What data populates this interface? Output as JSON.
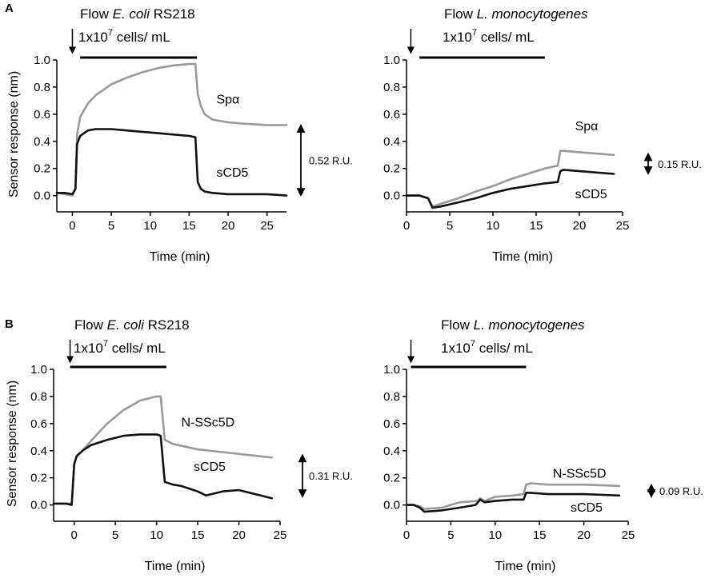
{
  "panel_labels": [
    "A",
    "B"
  ],
  "units_label": "cells/ mL",
  "flow_word": "Flow",
  "colors": {
    "gray": "#999999",
    "black": "#111111"
  },
  "chart_data": [
    {
      "type": "line",
      "panel": "A",
      "title_prefix": "Flow",
      "title_organism": "E. coli",
      "title_suffix": "RS218",
      "concentration_base": "1x10",
      "concentration_exp": "7",
      "concentration_unit": "cells/ mL",
      "xlabel": "Time (min)",
      "ylabel": "Sensor response (nm)",
      "xlim": [
        -2,
        27.5
      ],
      "ylim": [
        -0.12,
        1.0
      ],
      "xticks": [
        0,
        5,
        10,
        15,
        20,
        25
      ],
      "yticks": [
        0.0,
        0.2,
        0.4,
        0.6,
        0.8,
        1.0
      ],
      "tick_labels_x": [
        "0",
        "5",
        "10",
        "15",
        "20",
        "25"
      ],
      "tick_labels_y": [
        "0.0",
        "0.2",
        "0.4",
        "0.6",
        "0.8",
        "1.0"
      ],
      "injection_time": 0,
      "flow_bar": [
        1,
        16
      ],
      "annotation": {
        "text": "0.52 R.U.",
        "range": [
          0.0,
          0.52
        ]
      },
      "series": [
        {
          "name": "Spα",
          "color": "gray",
          "x": [
            -2,
            -1,
            0,
            0.4,
            0.6,
            1,
            2,
            3,
            5,
            7,
            9,
            11,
            13,
            15,
            15.8,
            16.1,
            16.5,
            17,
            18,
            20,
            22,
            25,
            27.5
          ],
          "y": [
            0.02,
            0.01,
            0.0,
            0.05,
            0.45,
            0.58,
            0.68,
            0.74,
            0.82,
            0.87,
            0.91,
            0.94,
            0.96,
            0.97,
            0.97,
            0.75,
            0.66,
            0.6,
            0.56,
            0.54,
            0.53,
            0.52,
            0.52
          ],
          "label_x": 18.5,
          "label_y": 0.68
        },
        {
          "name": "sCD5",
          "color": "black",
          "x": [
            -2,
            -1,
            0,
            0.4,
            0.6,
            1,
            2,
            3,
            5,
            7,
            9,
            11,
            13,
            15,
            15.8,
            16.1,
            16.5,
            17,
            18,
            20,
            22,
            25,
            27.5
          ],
          "y": [
            0.02,
            0.02,
            0.01,
            0.05,
            0.38,
            0.44,
            0.48,
            0.49,
            0.49,
            0.48,
            0.47,
            0.46,
            0.45,
            0.44,
            0.43,
            0.1,
            0.05,
            0.03,
            0.02,
            0.01,
            0.01,
            0.01,
            0.0
          ],
          "label_x": 18.5,
          "label_y": 0.14
        }
      ]
    },
    {
      "type": "line",
      "panel": "A",
      "title_prefix": "Flow",
      "title_organism": "L. monocytogenes",
      "title_suffix": "",
      "concentration_base": "1x10",
      "concentration_exp": "7",
      "concentration_unit": "cells/ mL",
      "xlabel": "Time (min)",
      "ylabel": "",
      "xlim": [
        0,
        25
      ],
      "ylim": [
        -0.12,
        1.0
      ],
      "xticks": [
        0,
        5,
        10,
        15,
        20,
        25
      ],
      "yticks": [
        0.0,
        0.2,
        0.4,
        0.6,
        0.8,
        1.0
      ],
      "tick_labels_x": [
        "0",
        "5",
        "10",
        "15",
        "20",
        "25"
      ],
      "tick_labels_y": [
        "0.0",
        "0.2",
        "0.4",
        "0.6",
        "0.8",
        "1.0"
      ],
      "injection_time": 0.5,
      "flow_bar": [
        1.5,
        16
      ],
      "annotation": {
        "text": "0.15 R.U.",
        "range": [
          0.16,
          0.31
        ]
      },
      "series": [
        {
          "name": "Spα",
          "color": "gray",
          "x": [
            0,
            1.5,
            2.5,
            3,
            4,
            6,
            8,
            10,
            12,
            14,
            16,
            17.5,
            17.8,
            18.2,
            20,
            22,
            24
          ],
          "y": [
            0.0,
            0.0,
            -0.02,
            -0.08,
            -0.06,
            -0.02,
            0.03,
            0.07,
            0.12,
            0.16,
            0.2,
            0.22,
            0.33,
            0.33,
            0.32,
            0.31,
            0.3
          ],
          "label_x": 19.5,
          "label_y": 0.48
        },
        {
          "name": "sCD5",
          "color": "black",
          "x": [
            0,
            1.5,
            2.5,
            3,
            4,
            6,
            8,
            10,
            12,
            14,
            16,
            17.5,
            17.8,
            18.2,
            20,
            22,
            24
          ],
          "y": [
            0.0,
            0.0,
            -0.02,
            -0.09,
            -0.08,
            -0.05,
            -0.02,
            0.02,
            0.05,
            0.07,
            0.09,
            0.1,
            0.18,
            0.19,
            0.18,
            0.17,
            0.16
          ],
          "label_x": 19.5,
          "label_y": -0.02
        }
      ]
    },
    {
      "type": "line",
      "panel": "B",
      "title_prefix": "Flow",
      "title_organism": "E. coli",
      "title_suffix": "RS218",
      "concentration_base": "1x10",
      "concentration_exp": "7",
      "concentration_unit": "cells/ mL",
      "xlabel": "Time (min)",
      "ylabel": "Sensor response (nm)",
      "xlim": [
        -2.5,
        25
      ],
      "ylim": [
        -0.12,
        1.0
      ],
      "xticks": [
        0,
        5,
        10,
        15,
        20,
        25
      ],
      "yticks": [
        0.0,
        0.2,
        0.4,
        0.6,
        0.8,
        1.0
      ],
      "tick_labels_x": [
        "0",
        "5",
        "10",
        "15",
        "20",
        "25"
      ],
      "tick_labels_y": [
        "0.0",
        "0.2",
        "0.4",
        "0.6",
        "0.8",
        "1.0"
      ],
      "injection_time": -0.5,
      "flow_bar": [
        -0.5,
        11.2
      ],
      "annotation": {
        "text": "0.31 R.U.",
        "range": [
          0.06,
          0.37
        ]
      },
      "series": [
        {
          "name": "N-SSc5D",
          "color": "gray",
          "x": [
            -2.5,
            -1,
            -0.3,
            0,
            0.3,
            1,
            2,
            4,
            6,
            8,
            10,
            10.5,
            11,
            12,
            15,
            18,
            21,
            24
          ],
          "y": [
            0.01,
            0.01,
            0.01,
            0.3,
            0.36,
            0.4,
            0.47,
            0.6,
            0.7,
            0.77,
            0.8,
            0.8,
            0.48,
            0.45,
            0.41,
            0.39,
            0.37,
            0.35
          ],
          "label_x": 13.0,
          "label_y": 0.58
        },
        {
          "name": "sCD5",
          "color": "black",
          "x": [
            -2.5,
            -1,
            -0.3,
            0,
            0.3,
            1,
            2,
            4,
            6,
            8,
            10,
            10.5,
            11,
            12,
            13,
            15,
            16,
            18,
            20,
            22,
            24
          ],
          "y": [
            0.01,
            0.01,
            0.0,
            0.3,
            0.36,
            0.4,
            0.44,
            0.48,
            0.51,
            0.52,
            0.52,
            0.51,
            0.17,
            0.15,
            0.14,
            0.1,
            0.07,
            0.1,
            0.11,
            0.08,
            0.05
          ],
          "label_x": 14.5,
          "label_y": 0.25
        }
      ]
    },
    {
      "type": "line",
      "panel": "B",
      "title_prefix": "Flow",
      "title_organism": "L. monocytogenes",
      "title_suffix": "",
      "concentration_base": "1x10",
      "concentration_exp": "7",
      "concentration_unit": "cells/ mL",
      "xlabel": "Time (min)",
      "ylabel": "",
      "xlim": [
        0,
        25
      ],
      "ylim": [
        -0.12,
        1.0
      ],
      "xticks": [
        0,
        5,
        10,
        15,
        20,
        25
      ],
      "yticks": [
        0.0,
        0.2,
        0.4,
        0.6,
        0.8,
        1.0
      ],
      "tick_labels_x": [
        "0",
        "5",
        "10",
        "15",
        "20",
        "25"
      ],
      "tick_labels_y": [
        "0.0",
        "0.2",
        "0.4",
        "0.6",
        "0.8",
        "1.0"
      ],
      "injection_time": 0.5,
      "flow_bar": [
        0.5,
        13.5
      ],
      "annotation": {
        "text": "0.09 R.U.",
        "range": [
          0.06,
          0.15
        ]
      },
      "series": [
        {
          "name": "N-SSc5D",
          "color": "gray",
          "x": [
            0,
            0.8,
            1.5,
            2,
            4,
            6,
            8,
            8.3,
            8.8,
            10,
            12,
            13.2,
            13.5,
            14,
            16,
            20,
            24
          ],
          "y": [
            0.0,
            0.0,
            -0.01,
            -0.03,
            -0.02,
            0.02,
            0.03,
            0.05,
            0.03,
            0.06,
            0.07,
            0.08,
            0.15,
            0.16,
            0.15,
            0.15,
            0.14
          ],
          "label_x": 16.5,
          "label_y": 0.2
        },
        {
          "name": "sCD5",
          "color": "black",
          "x": [
            0,
            0.8,
            1.5,
            2,
            4,
            6,
            7.8,
            8.3,
            8.8,
            10,
            12,
            13.2,
            13.5,
            14,
            16,
            20,
            24
          ],
          "y": [
            0.0,
            0.0,
            -0.02,
            -0.05,
            -0.04,
            -0.02,
            0.0,
            0.04,
            0.02,
            0.03,
            0.04,
            0.04,
            0.09,
            0.09,
            0.08,
            0.08,
            0.07
          ],
          "label_x": 18.5,
          "label_y": -0.05
        }
      ]
    }
  ]
}
